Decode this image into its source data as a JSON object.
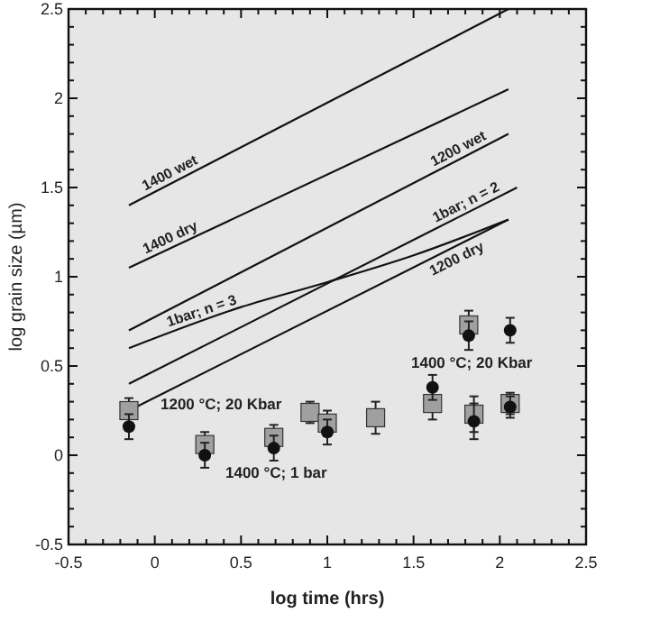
{
  "chart_data": {
    "type": "line",
    "xlabel": "log time (hrs)",
    "ylabel": "log grain size (µm)",
    "xlim": [
      -0.5,
      2.5
    ],
    "ylim": [
      -0.5,
      2.5
    ],
    "xticks": [
      -0.5,
      {
        "value": -0.4,
        "label": null
      },
      {
        "value": -0.3,
        "label": null
      },
      {
        "value": -0.2,
        "label": null
      },
      {
        "value": -0.1,
        "label": null
      },
      0,
      {
        "value": 0.1,
        "label": null
      },
      {
        "value": 0.2,
        "label": null
      },
      {
        "value": 0.3,
        "label": null
      },
      {
        "value": 0.4,
        "label": null
      },
      0.5,
      {
        "value": 0.6,
        "label": null
      },
      {
        "value": 0.7,
        "label": null
      },
      {
        "value": 0.8,
        "label": null
      },
      {
        "value": 0.9,
        "label": null
      },
      1,
      {
        "value": 1.1,
        "label": null
      },
      {
        "value": 1.2,
        "label": null
      },
      {
        "value": 1.3,
        "label": null
      },
      {
        "value": 1.4,
        "label": null
      },
      1.5,
      {
        "value": 1.6,
        "label": null
      },
      {
        "value": 1.7,
        "label": null
      },
      {
        "value": 1.8,
        "label": null
      },
      {
        "value": 1.9,
        "label": null
      },
      2,
      {
        "value": 2.1,
        "label": null
      },
      {
        "value": 2.2,
        "label": null
      },
      {
        "value": 2.3,
        "label": null
      },
      {
        "value": 2.4,
        "label": null
      },
      2.5
    ],
    "yticks": [
      -0.5,
      {
        "value": -0.4,
        "label": null
      },
      {
        "value": -0.3,
        "label": null
      },
      {
        "value": -0.2,
        "label": null
      },
      {
        "value": -0.1,
        "label": null
      },
      0,
      {
        "value": 0.1,
        "label": null
      },
      {
        "value": 0.2,
        "label": null
      },
      {
        "value": 0.3,
        "label": null
      },
      {
        "value": 0.4,
        "label": null
      },
      0.5,
      {
        "value": 0.6,
        "label": null
      },
      {
        "value": 0.7,
        "label": null
      },
      {
        "value": 0.8,
        "label": null
      },
      {
        "value": 0.9,
        "label": null
      },
      1,
      {
        "value": 1.1,
        "label": null
      },
      {
        "value": 1.2,
        "label": null
      },
      {
        "value": 1.3,
        "label": null
      },
      {
        "value": 1.4,
        "label": null
      },
      1.5,
      {
        "value": 1.6,
        "label": null
      },
      {
        "value": 1.7,
        "label": null
      },
      {
        "value": 1.8,
        "label": null
      },
      {
        "value": 1.9,
        "label": null
      },
      2,
      {
        "value": 2.1,
        "label": null
      },
      {
        "value": 2.2,
        "label": null
      },
      {
        "value": 2.3,
        "label": null
      },
      {
        "value": 2.4,
        "label": null
      },
      2.5
    ],
    "grid": false,
    "legend": false,
    "series": [
      {
        "name": "1400 wet",
        "color": "#111111",
        "x": [
          -0.15,
          2.05
        ],
        "values": [
          1.4,
          2.5
        ],
        "marker": "none"
      },
      {
        "name": "1400 dry",
        "color": "#111111",
        "x": [
          -0.15,
          2.05
        ],
        "values": [
          1.05,
          2.05
        ],
        "marker": "none"
      },
      {
        "name": "1200 wet",
        "color": "#111111",
        "x": [
          -0.15,
          2.05
        ],
        "values": [
          0.7,
          1.8
        ],
        "marker": "none"
      },
      {
        "name": "1bar; n = 3",
        "color": "#111111",
        "x": [
          -0.15,
          0.5,
          1,
          1.5,
          2.05
        ],
        "values": [
          0.6,
          0.83,
          0.97,
          1.12,
          1.32
        ],
        "marker": "none"
      },
      {
        "name": "1bar; n = 2",
        "color": "#111111",
        "x": [
          -0.15,
          2.1
        ],
        "values": [
          0.4,
          1.5
        ],
        "marker": "none"
      },
      {
        "name": "1200 dry",
        "color": "#111111",
        "x": [
          -0.15,
          2.05
        ],
        "values": [
          0.25,
          1.32
        ],
        "marker": "none"
      },
      {
        "type": "scatter",
        "color": "#a0a0a0",
        "marker": "square",
        "x": [
          -0.15,
          0.29,
          0.69,
          0.9,
          1.0,
          1.28,
          1.61,
          1.82,
          1.85,
          2.06
        ],
        "values": [
          0.25,
          0.06,
          0.1,
          0.24,
          0.18,
          0.21,
          0.29,
          0.73,
          0.23,
          0.29
        ],
        "errors": [
          0.07,
          0.07,
          0.07,
          0.06,
          0.07,
          0.09,
          0.09,
          0.08,
          0.1,
          0.06
        ]
      },
      {
        "type": "scatter",
        "color": "#111111",
        "marker": "circle",
        "x": [
          -0.15,
          0.29,
          0.69,
          1.0,
          1.61,
          1.82,
          1.85,
          2.06,
          2.06
        ],
        "values": [
          0.16,
          0.0,
          0.04,
          0.13,
          0.38,
          0.67,
          0.19,
          0.7,
          0.27
        ],
        "errors": [
          0.07,
          0.07,
          0.07,
          0.07,
          0.07,
          0.08,
          0.1,
          0.07,
          0.06
        ]
      }
    ],
    "annotations": [
      "1200 °C; 20 Kbar",
      "1400 °C; 1 bar",
      "1400 °C; 20 Kbar"
    ]
  }
}
